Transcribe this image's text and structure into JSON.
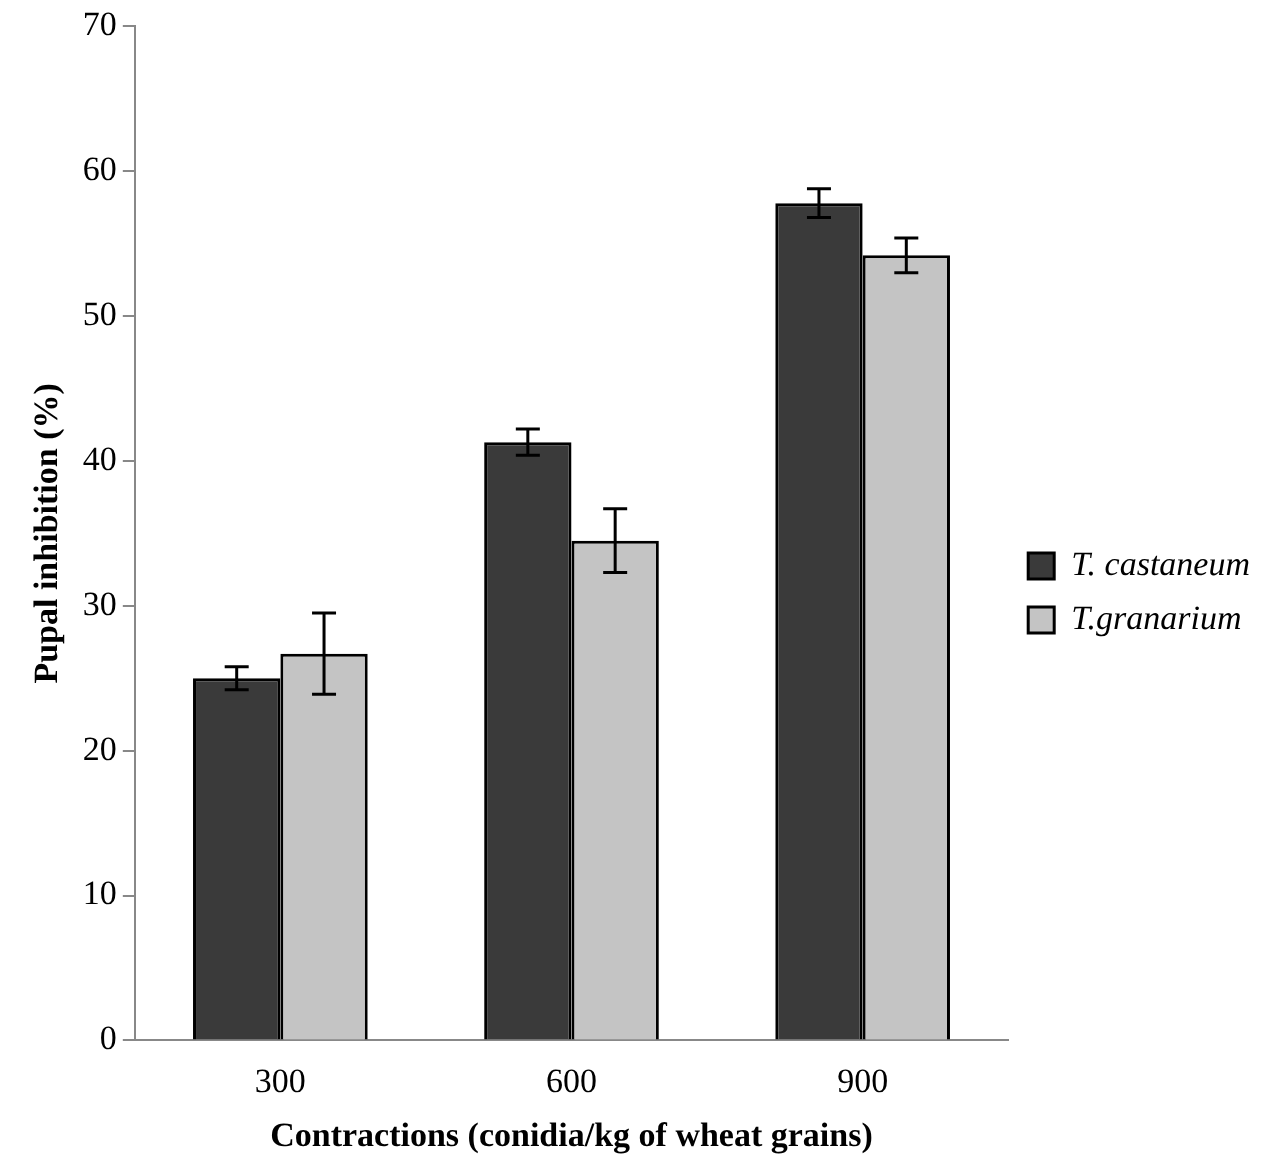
{
  "chart_data": {
    "type": "bar",
    "xlabel": "Contractions (conidia/kg of wheat grains)",
    "ylabel": "Pupal inhibition (%)",
    "categories": [
      "300",
      "600",
      "900"
    ],
    "series": [
      {
        "name": "T. castaneum",
        "color": "#3a3a3a",
        "values": [
          25.0,
          41.3,
          57.8
        ],
        "errors": [
          0.8,
          0.9,
          1.0
        ]
      },
      {
        "name": "T.granarium",
        "color": "#c4c4c4",
        "values": [
          26.7,
          34.5,
          54.2
        ],
        "errors": [
          2.8,
          2.2,
          1.2
        ]
      }
    ],
    "ylim": [
      0,
      70
    ],
    "yticks": [
      0,
      10,
      20,
      30,
      40,
      50,
      60,
      70
    ],
    "grid": false,
    "legend": "right"
  }
}
